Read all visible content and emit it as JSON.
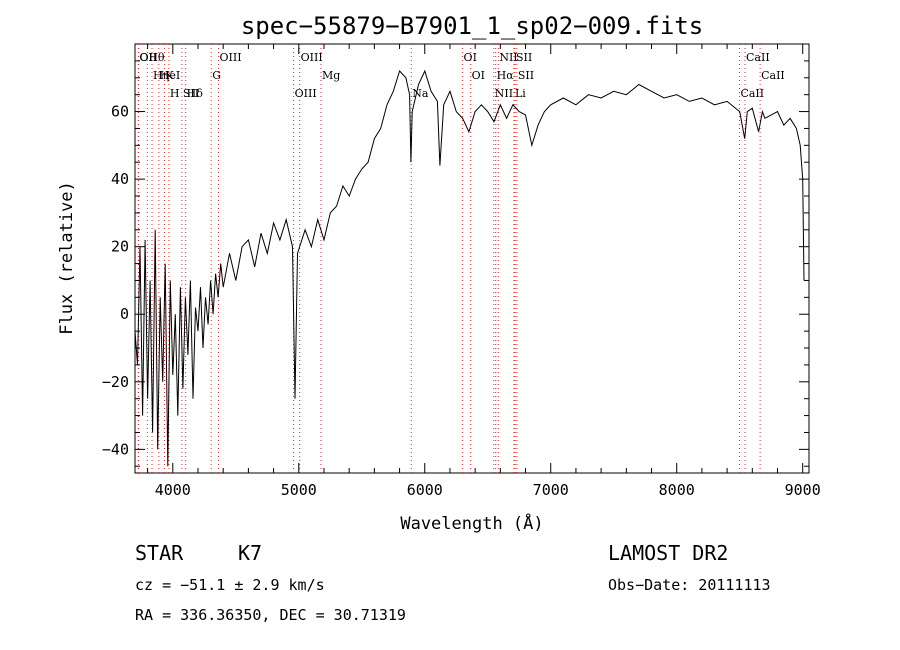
{
  "chart_data": {
    "type": "line",
    "title": "spec−55879−B7901_1_sp02−009.fits",
    "xlabel": "Wavelength (Å)",
    "ylabel": "Flux (relative)",
    "xlim": [
      3700,
      9050
    ],
    "ylim": [
      -47,
      80
    ],
    "x_ticks": [
      4000,
      5000,
      6000,
      7000,
      8000,
      9000
    ],
    "y_ticks": [
      -40,
      -20,
      0,
      20,
      40,
      60
    ],
    "x_tick_labels": [
      "4000",
      "5000",
      "6000",
      "7000",
      "8000",
      "9000"
    ],
    "y_tick_labels": [
      "−40",
      "−20",
      "0",
      "20",
      "40",
      "60"
    ],
    "grid": false,
    "series": [
      {
        "color": "#000000",
        "points": [
          [
            3700,
            -5
          ],
          [
            3720,
            -15
          ],
          [
            3740,
            20
          ],
          [
            3760,
            -30
          ],
          [
            3780,
            22
          ],
          [
            3800,
            -25
          ],
          [
            3820,
            10
          ],
          [
            3840,
            -35
          ],
          [
            3860,
            25
          ],
          [
            3880,
            -40
          ],
          [
            3900,
            5
          ],
          [
            3920,
            -20
          ],
          [
            3940,
            15
          ],
          [
            3960,
            -45
          ],
          [
            3980,
            10
          ],
          [
            4000,
            -18
          ],
          [
            4020,
            0
          ],
          [
            4040,
            -30
          ],
          [
            4060,
            8
          ],
          [
            4080,
            -22
          ],
          [
            4100,
            5
          ],
          [
            4120,
            -12
          ],
          [
            4140,
            10
          ],
          [
            4160,
            -25
          ],
          [
            4180,
            2
          ],
          [
            4200,
            -5
          ],
          [
            4220,
            8
          ],
          [
            4240,
            -10
          ],
          [
            4260,
            5
          ],
          [
            4280,
            -3
          ],
          [
            4300,
            10
          ],
          [
            4320,
            0
          ],
          [
            4340,
            12
          ],
          [
            4360,
            5
          ],
          [
            4380,
            15
          ],
          [
            4400,
            8
          ],
          [
            4450,
            18
          ],
          [
            4500,
            10
          ],
          [
            4550,
            20
          ],
          [
            4600,
            22
          ],
          [
            4650,
            14
          ],
          [
            4700,
            24
          ],
          [
            4750,
            18
          ],
          [
            4800,
            27
          ],
          [
            4850,
            22
          ],
          [
            4900,
            28
          ],
          [
            4950,
            20
          ],
          [
            4970,
            -25
          ],
          [
            4990,
            18
          ],
          [
            5050,
            25
          ],
          [
            5100,
            20
          ],
          [
            5150,
            28
          ],
          [
            5200,
            22
          ],
          [
            5250,
            30
          ],
          [
            5300,
            32
          ],
          [
            5350,
            38
          ],
          [
            5400,
            35
          ],
          [
            5450,
            40
          ],
          [
            5500,
            43
          ],
          [
            5550,
            45
          ],
          [
            5600,
            52
          ],
          [
            5650,
            55
          ],
          [
            5700,
            62
          ],
          [
            5750,
            66
          ],
          [
            5800,
            72
          ],
          [
            5850,
            70
          ],
          [
            5880,
            65
          ],
          [
            5890,
            45
          ],
          [
            5900,
            60
          ],
          [
            5950,
            68
          ],
          [
            6000,
            72
          ],
          [
            6050,
            66
          ],
          [
            6100,
            63
          ],
          [
            6120,
            44
          ],
          [
            6150,
            62
          ],
          [
            6200,
            66
          ],
          [
            6250,
            60
          ],
          [
            6300,
            58
          ],
          [
            6350,
            54
          ],
          [
            6400,
            60
          ],
          [
            6450,
            62
          ],
          [
            6500,
            60
          ],
          [
            6550,
            57
          ],
          [
            6600,
            62
          ],
          [
            6650,
            58
          ],
          [
            6700,
            62
          ],
          [
            6750,
            60
          ],
          [
            6800,
            59
          ],
          [
            6850,
            50
          ],
          [
            6900,
            56
          ],
          [
            6950,
            60
          ],
          [
            7000,
            62
          ],
          [
            7100,
            64
          ],
          [
            7200,
            62
          ],
          [
            7300,
            65
          ],
          [
            7400,
            64
          ],
          [
            7500,
            66
          ],
          [
            7600,
            65
          ],
          [
            7700,
            68
          ],
          [
            7800,
            66
          ],
          [
            7900,
            64
          ],
          [
            8000,
            65
          ],
          [
            8100,
            63
          ],
          [
            8200,
            64
          ],
          [
            8300,
            62
          ],
          [
            8400,
            63
          ],
          [
            8500,
            60
          ],
          [
            8540,
            52
          ],
          [
            8560,
            60
          ],
          [
            8600,
            61
          ],
          [
            8650,
            54
          ],
          [
            8680,
            60
          ],
          [
            8700,
            58
          ],
          [
            8800,
            60
          ],
          [
            8850,
            56
          ],
          [
            8900,
            58
          ],
          [
            8950,
            55
          ],
          [
            8980,
            50
          ],
          [
            9000,
            40
          ],
          [
            9010,
            10
          ]
        ]
      }
    ],
    "line_markers": [
      {
        "label": "Hθ",
        "x": 3798
      },
      {
        "label": "K",
        "x": 3934
      },
      {
        "label": "Hδ",
        "x": 4102
      },
      {
        "label": "OII",
        "x": 3727
      },
      {
        "label": "HeI",
        "x": 3889
      },
      {
        "label": "SII",
        "x": 4072
      },
      {
        "label": "OII",
        "x": 3729
      },
      {
        "label": "Hη",
        "x": 3835
      },
      {
        "label": "H",
        "x": 3969
      },
      {
        "label": "OIII",
        "x": 4363
      },
      {
        "label": "G",
        "x": 4305
      },
      {
        "label": "OIII",
        "x": 4959
      },
      {
        "label": "OIII",
        "x": 5007
      },
      {
        "label": "Mg",
        "x": 5176
      },
      {
        "label": "Na",
        "x": 5893
      },
      {
        "label": "OI",
        "x": 6300
      },
      {
        "label": "OI",
        "x": 6364
      },
      {
        "label": "NII",
        "x": 6548
      },
      {
        "label": "NII",
        "x": 6584
      },
      {
        "label": "Hα",
        "x": 6563
      },
      {
        "label": "Li",
        "x": 6708
      },
      {
        "label": "SII",
        "x": 6716
      },
      {
        "label": "SII",
        "x": 6731
      },
      {
        "label": "CaII",
        "x": 8498
      },
      {
        "label": "CaII",
        "x": 8542
      },
      {
        "label": "CaII",
        "x": 8662
      }
    ]
  },
  "info": {
    "object_class": "STAR",
    "subclass": "K7",
    "survey": "LAMOST DR2",
    "cz": "cz = −51.1 ± 2.9 km/s",
    "obs_date": "Obs−Date: 20111113",
    "coords": "RA = 336.36350, DEC =  30.71319"
  },
  "colors": {
    "line": "#000000",
    "marker_line": "#cc3333",
    "axis": "#000000"
  }
}
